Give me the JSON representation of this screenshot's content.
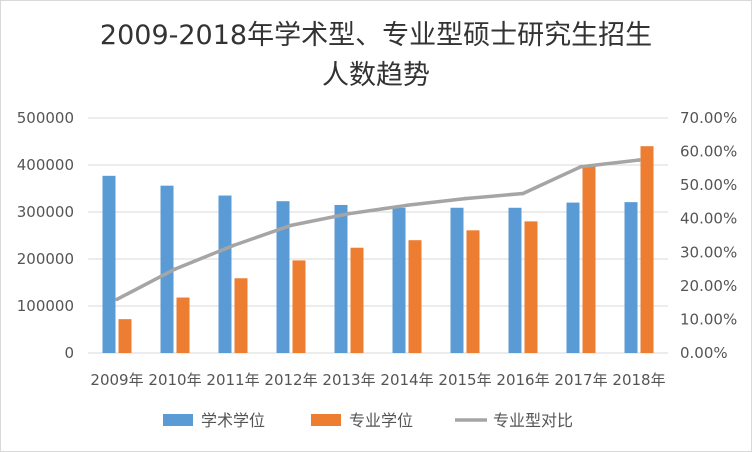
{
  "chart_data": {
    "type": "bar",
    "title": "2009-2018年学术型、专业型硕士研究生招生人数趋势",
    "title_lines": [
      "2009-2018年学术型、专业型硕士研究生招生",
      "人数趋势"
    ],
    "categories": [
      "2009年",
      "2010年",
      "2011年",
      "2012年",
      "2013年",
      "2014年",
      "2015年",
      "2016年",
      "2017年",
      "2018年"
    ],
    "series": [
      {
        "name": "学术学位",
        "type": "bar",
        "axis": "left",
        "color": "#5b9bd5",
        "values": [
          377000,
          356000,
          335000,
          323000,
          315000,
          309000,
          309000,
          309000,
          320000,
          321000
        ]
      },
      {
        "name": "专业学位",
        "type": "bar",
        "axis": "left",
        "color": "#ed7d31",
        "values": [
          72000,
          118000,
          159000,
          197000,
          224000,
          240000,
          261000,
          280000,
          400000,
          440000
        ]
      },
      {
        "name": "专业型对比",
        "type": "line",
        "axis": "right",
        "color": "#a5a5a5",
        "values": [
          0.16,
          0.25,
          0.32,
          0.38,
          0.415,
          0.44,
          0.46,
          0.475,
          0.555,
          0.575
        ]
      }
    ],
    "y_left": {
      "min": 0,
      "max": 500000,
      "ticks": [
        "0",
        "100000",
        "200000",
        "300000",
        "400000",
        "500000"
      ]
    },
    "y_right": {
      "min": 0,
      "max": 0.7,
      "ticks": [
        "0.00%",
        "10.00%",
        "20.00%",
        "30.00%",
        "40.00%",
        "50.00%",
        "60.00%",
        "70.00%"
      ]
    },
    "xlabel": "",
    "ylabel": "",
    "grid": true,
    "legend_position": "bottom"
  }
}
